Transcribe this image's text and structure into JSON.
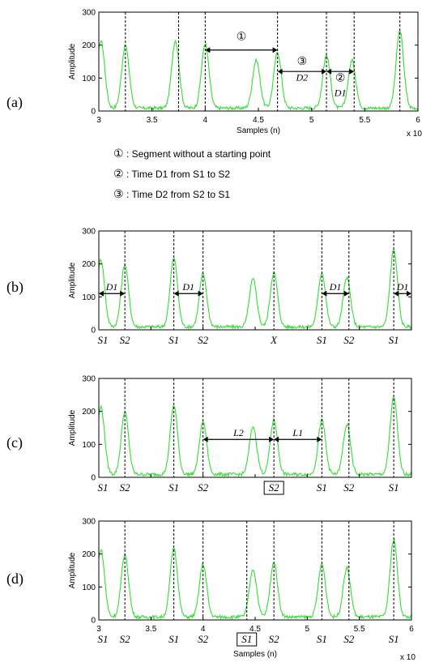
{
  "legend": [
    {
      "symbol": "①",
      "text": ": Segment without a starting point"
    },
    {
      "symbol": "②",
      "text": ": Time D1 from S1 to S2"
    },
    {
      "symbol": "③",
      "text": ": Time D2 from S2 to S1"
    }
  ],
  "chart_data": [
    {
      "panel": "(a)",
      "type": "line",
      "ylabel": "Amplitude",
      "xlabel": "Samples (n)",
      "x_exponent": "x 10",
      "x_exponent_power": "4",
      "xlim": [
        3,
        6
      ],
      "ylim": [
        0,
        300
      ],
      "xticks": [
        3,
        3.5,
        4,
        4.5,
        5,
        5.5,
        6
      ],
      "yticks": [
        0,
        100,
        200,
        300
      ],
      "show_xtick_labels": true,
      "markers": [
        3.25,
        3.75,
        4.0,
        4.68,
        5.14,
        5.4,
        5.83
      ],
      "peaks": [
        [
          3.02,
          205
        ],
        [
          3.25,
          190
        ],
        [
          3.72,
          205
        ],
        [
          4.0,
          195
        ],
        [
          4.48,
          145
        ],
        [
          4.68,
          170
        ],
        [
          5.14,
          160
        ],
        [
          5.38,
          145
        ],
        [
          5.83,
          235
        ]
      ],
      "arrows": [
        {
          "x1": 4.0,
          "x2": 4.68,
          "y": 185,
          "label": "①",
          "label_y": 225,
          "kind": "sym"
        },
        {
          "x1": 4.68,
          "x2": 5.14,
          "y": 120,
          "label": "③",
          "label_y": 150,
          "kind": "sym"
        },
        {
          "x1": 5.14,
          "x2": 5.4,
          "y": 120,
          "label": "②",
          "label_y": 100,
          "kind": "sym"
        }
      ],
      "annotations": [
        {
          "x": 4.91,
          "y": 92,
          "text": "D2"
        },
        {
          "x": 5.27,
          "y": 45,
          "text": "D1"
        }
      ],
      "s_labels": []
    },
    {
      "panel": "(b)",
      "type": "line",
      "ylabel": "Amplitude",
      "xlim": [
        3,
        6
      ],
      "ylim": [
        0,
        300
      ],
      "yticks": [
        0,
        100,
        200,
        300
      ],
      "show_xtick_labels": false,
      "markers": [
        3.25,
        3.72,
        4.0,
        4.68,
        5.14,
        5.4,
        5.83
      ],
      "peaks": [
        [
          3.02,
          205
        ],
        [
          3.25,
          190
        ],
        [
          3.72,
          210
        ],
        [
          4.0,
          160
        ],
        [
          4.48,
          145
        ],
        [
          4.68,
          165
        ],
        [
          5.14,
          165
        ],
        [
          5.38,
          150
        ],
        [
          5.83,
          235
        ]
      ],
      "arrows": [
        {
          "x1": 3.0,
          "x2": 3.25,
          "y": 110,
          "label": "D1",
          "label_y": 130,
          "kind": "text"
        },
        {
          "x1": 3.72,
          "x2": 4.0,
          "y": 110,
          "label": "D1",
          "label_y": 130,
          "kind": "text"
        },
        {
          "x1": 5.14,
          "x2": 5.4,
          "y": 110,
          "label": "D1",
          "label_y": 130,
          "kind": "text"
        },
        {
          "x1": 5.83,
          "x2": 6.0,
          "y": 110,
          "label": "D1",
          "label_y": 130,
          "kind": "text"
        }
      ],
      "annotations": [],
      "s_labels": [
        {
          "x": 3.0,
          "text": "S1"
        },
        {
          "x": 3.25,
          "text": "S2"
        },
        {
          "x": 3.72,
          "text": "S1"
        },
        {
          "x": 4.0,
          "text": "S2"
        },
        {
          "x": 4.68,
          "text": "X"
        },
        {
          "x": 5.14,
          "text": "S1"
        },
        {
          "x": 5.4,
          "text": "S2"
        },
        {
          "x": 5.83,
          "text": "S1"
        }
      ]
    },
    {
      "panel": "(c)",
      "type": "line",
      "ylabel": "Amplitude",
      "xlim": [
        3,
        6
      ],
      "ylim": [
        0,
        300
      ],
      "yticks": [
        0,
        100,
        200,
        300
      ],
      "show_xtick_labels": false,
      "markers": [
        3.25,
        3.72,
        4.0,
        4.68,
        5.14,
        5.4,
        5.83
      ],
      "peaks": [
        [
          3.02,
          205
        ],
        [
          3.25,
          190
        ],
        [
          3.72,
          210
        ],
        [
          4.0,
          160
        ],
        [
          4.48,
          145
        ],
        [
          4.68,
          165
        ],
        [
          5.14,
          165
        ],
        [
          5.38,
          150
        ],
        [
          5.83,
          235
        ]
      ],
      "arrows": [
        {
          "x1": 4.0,
          "x2": 4.68,
          "y": 115,
          "label": "L2",
          "label_y": 135,
          "kind": "text"
        },
        {
          "x1": 4.68,
          "x2": 5.14,
          "y": 115,
          "label": "L1",
          "label_y": 135,
          "kind": "text"
        }
      ],
      "annotations": [],
      "s_labels": [
        {
          "x": 3.0,
          "text": "S1"
        },
        {
          "x": 3.25,
          "text": "S2"
        },
        {
          "x": 3.72,
          "text": "S1"
        },
        {
          "x": 4.0,
          "text": "S2"
        },
        {
          "x": 4.68,
          "text": "S2",
          "boxed": true
        },
        {
          "x": 5.14,
          "text": "S1"
        },
        {
          "x": 5.4,
          "text": "S2"
        },
        {
          "x": 5.83,
          "text": "S1"
        }
      ]
    },
    {
      "panel": "(d)",
      "type": "line",
      "ylabel": "Amplitude",
      "xlabel": "Samples (n)",
      "x_exponent": "x 10",
      "x_exponent_power": "4",
      "xlim": [
        3,
        6
      ],
      "ylim": [
        0,
        300
      ],
      "xticks": [
        3,
        3.5,
        4,
        4.5,
        5,
        5.5,
        6
      ],
      "yticks": [
        0,
        100,
        200,
        300
      ],
      "show_xtick_labels": true,
      "markers": [
        3.25,
        3.72,
        4.0,
        4.42,
        4.68,
        5.14,
        5.4,
        5.83
      ],
      "peaks": [
        [
          3.02,
          205
        ],
        [
          3.25,
          190
        ],
        [
          3.72,
          210
        ],
        [
          4.0,
          160
        ],
        [
          4.48,
          145
        ],
        [
          4.68,
          165
        ],
        [
          5.14,
          160
        ],
        [
          5.38,
          150
        ],
        [
          5.83,
          235
        ]
      ],
      "arrows": [],
      "annotations": [],
      "s_labels": [
        {
          "x": 3.0,
          "text": "S1"
        },
        {
          "x": 3.25,
          "text": "S2"
        },
        {
          "x": 3.72,
          "text": "S1"
        },
        {
          "x": 4.0,
          "text": "S2"
        },
        {
          "x": 4.42,
          "text": "S1",
          "boxed": true
        },
        {
          "x": 4.68,
          "text": "S2"
        },
        {
          "x": 5.14,
          "text": "S1"
        },
        {
          "x": 5.4,
          "text": "S2"
        },
        {
          "x": 5.83,
          "text": "S1"
        }
      ]
    }
  ],
  "colors": {
    "signal": "#33dd33",
    "marker": "#000000",
    "axis": "#000000"
  }
}
